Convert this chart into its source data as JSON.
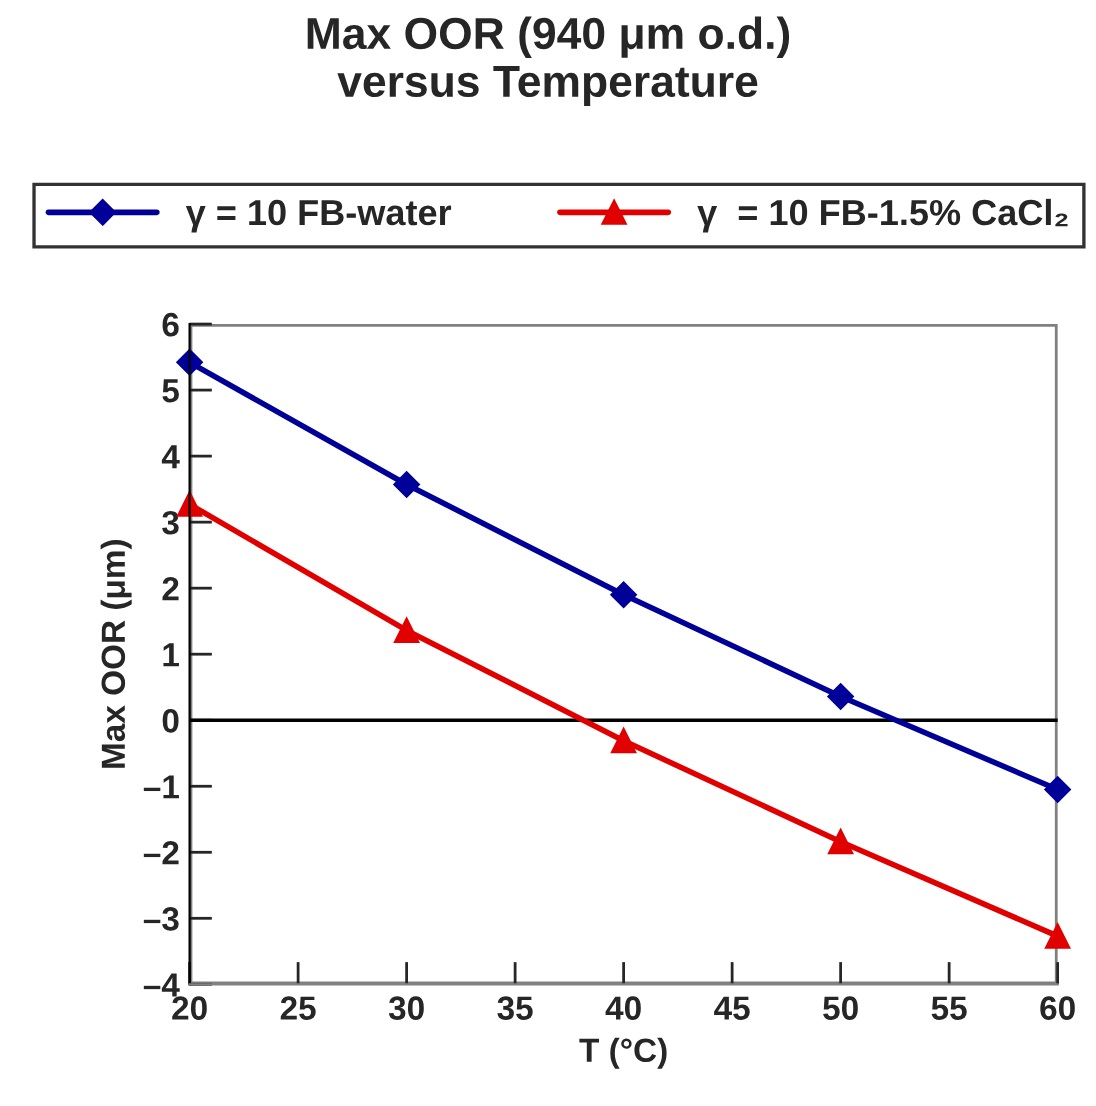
{
  "chart_data": {
    "type": "line",
    "title": "Max OOR (940 μm o.d.)\nversus Temperature",
    "xlabel": "T (°C)",
    "ylabel": "Max OOR (μm)",
    "x": [
      20,
      30,
      40,
      50,
      60
    ],
    "series": [
      {
        "name": "γ = 10 FB-water",
        "color": "#000099",
        "marker": "diamond",
        "values": [
          5.42,
          3.57,
          1.9,
          0.36,
          -1.05
        ]
      },
      {
        "name": "γ  = 10 FB-1.5% CaCl₂",
        "color": "#e00000",
        "marker": "triangle",
        "values": [
          3.27,
          1.36,
          -0.31,
          -1.84,
          -3.27
        ]
      }
    ],
    "xlim": [
      20,
      60
    ],
    "xticks": [
      20,
      25,
      30,
      35,
      40,
      45,
      50,
      55,
      60
    ],
    "ylim": [
      -4,
      6
    ],
    "yticks": [
      {
        "value": -4,
        "label": "–4"
      },
      {
        "value": -3,
        "label": "–3"
      },
      {
        "value": -2,
        "label": "–2"
      },
      {
        "value": -1,
        "label": "–1"
      },
      0,
      1,
      2,
      3,
      4,
      5,
      6
    ],
    "ref_lines": [
      {
        "axis": "y",
        "value": 0,
        "color": "#000000"
      }
    ],
    "grid": false,
    "legend": "top",
    "line_style": "solid"
  }
}
